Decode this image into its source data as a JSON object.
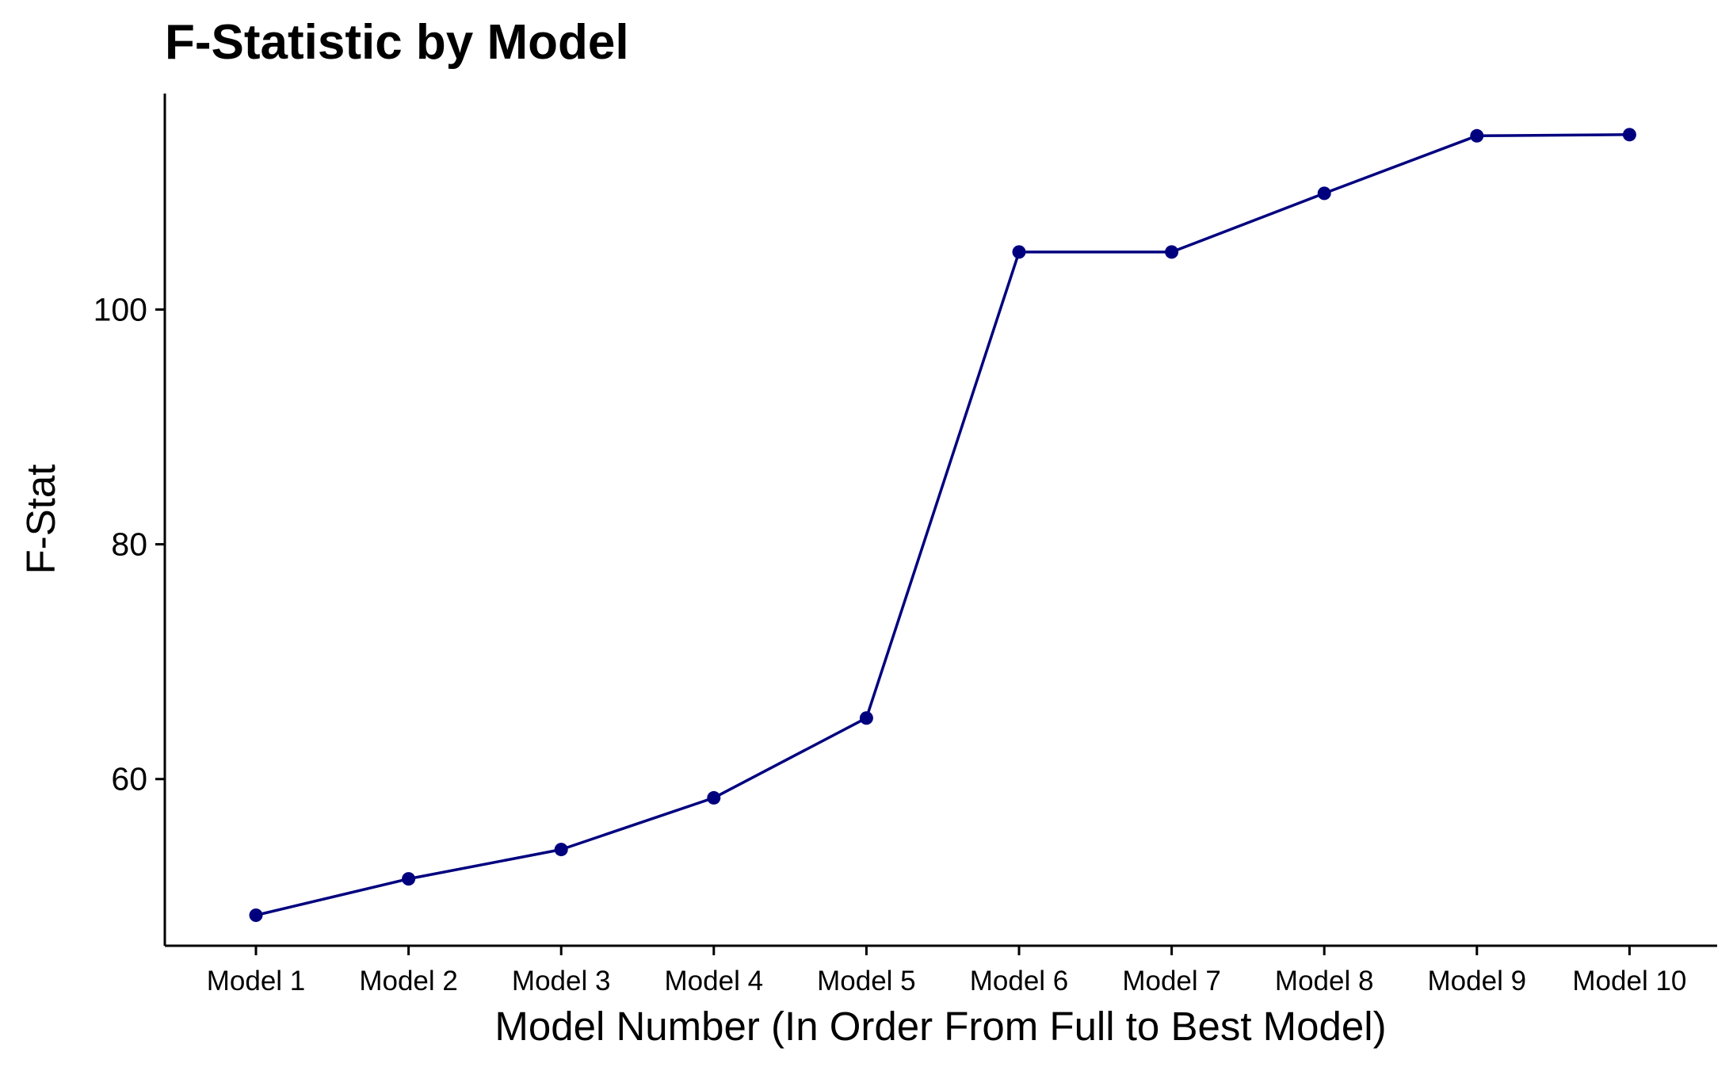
{
  "chart_data": {
    "type": "line",
    "title": "F-Statistic by Model",
    "xlabel": "Model Number (In Order From Full to Best Model)",
    "ylabel": "F-Stat",
    "categories": [
      "Model 1",
      "Model 2",
      "Model 3",
      "Model 4",
      "Model 5",
      "Model 6",
      "Model 7",
      "Model 8",
      "Model 9",
      "Model 10"
    ],
    "series": [
      {
        "values": [
          48.4,
          51.5,
          54.0,
          58.4,
          65.2,
          104.9,
          104.9,
          109.9,
          114.8,
          114.9
        ]
      }
    ],
    "yticks": [
      60,
      80,
      100
    ],
    "ylim": [
      45.8,
      118.4
    ],
    "grid": false,
    "legend": "none",
    "colors": {
      "series": "#00007F",
      "axis": "#000000",
      "text": "#000000"
    }
  }
}
